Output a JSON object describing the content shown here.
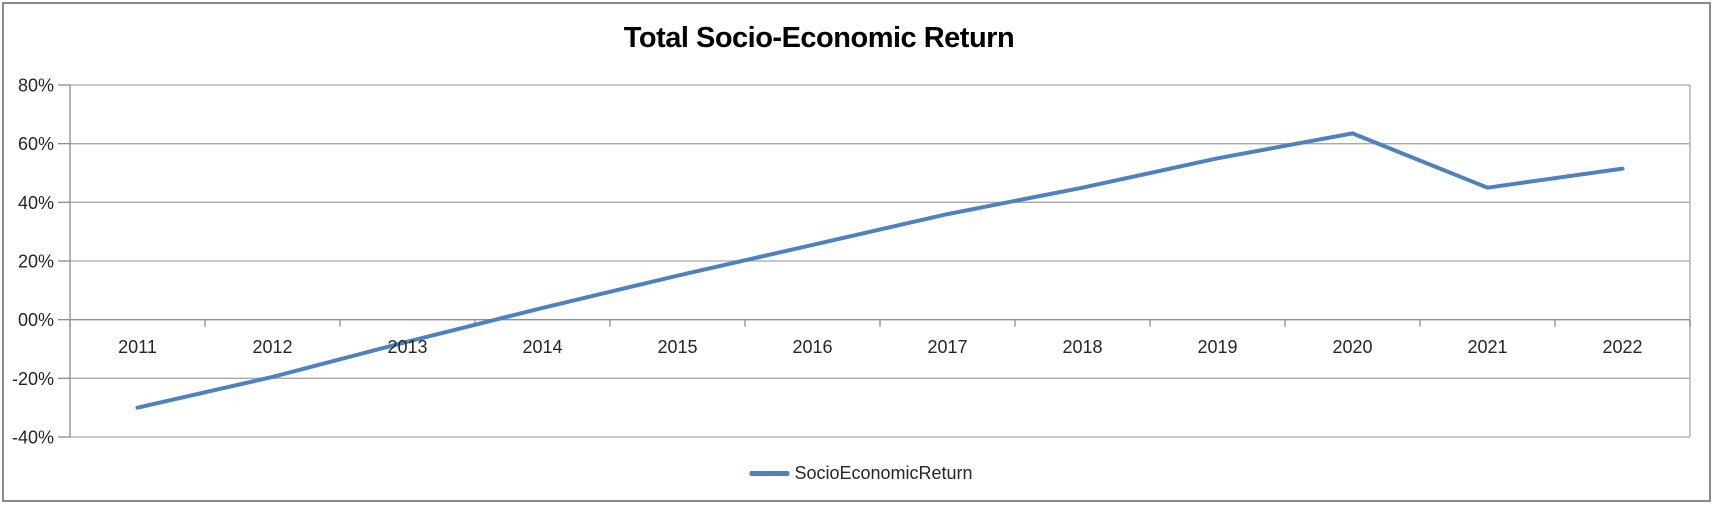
{
  "chart_data": {
    "type": "line",
    "title": "Total Socio-Economic Return",
    "categories": [
      "2011",
      "2012",
      "2013",
      "2014",
      "2015",
      "2016",
      "2017",
      "2018",
      "2019",
      "2020",
      "2021",
      "2022"
    ],
    "series": [
      {
        "name": "SocioEconomicReturn",
        "color": "#4F81BD",
        "values": [
          -30,
          -19.5,
          -7.5,
          4,
          15,
          25.5,
          36,
          45,
          55,
          63.5,
          45,
          51.5
        ]
      }
    ],
    "xlabel": "",
    "ylabel": "",
    "ylim": [
      -40,
      80
    ],
    "ytick_step": 20,
    "ytick_values_top_to_bottom": [
      80,
      60,
      40,
      20,
      0,
      -20,
      -40
    ],
    "ytick_labels_top_to_bottom": [
      "80%",
      "60%",
      "40%",
      "20%",
      "00%",
      "-20%",
      "-40%"
    ],
    "grid": true,
    "legend_position": "bottom-center",
    "axis_cross_value": 0
  },
  "styles": {
    "series_color": "#4F81BD",
    "grid_color": "#A8A8A8",
    "axis_color": "#8C8C8C",
    "frame_color": "#8C8C8C",
    "label_color": "#262626",
    "title_color": "#000000",
    "background_color": "#FFFFFF"
  }
}
